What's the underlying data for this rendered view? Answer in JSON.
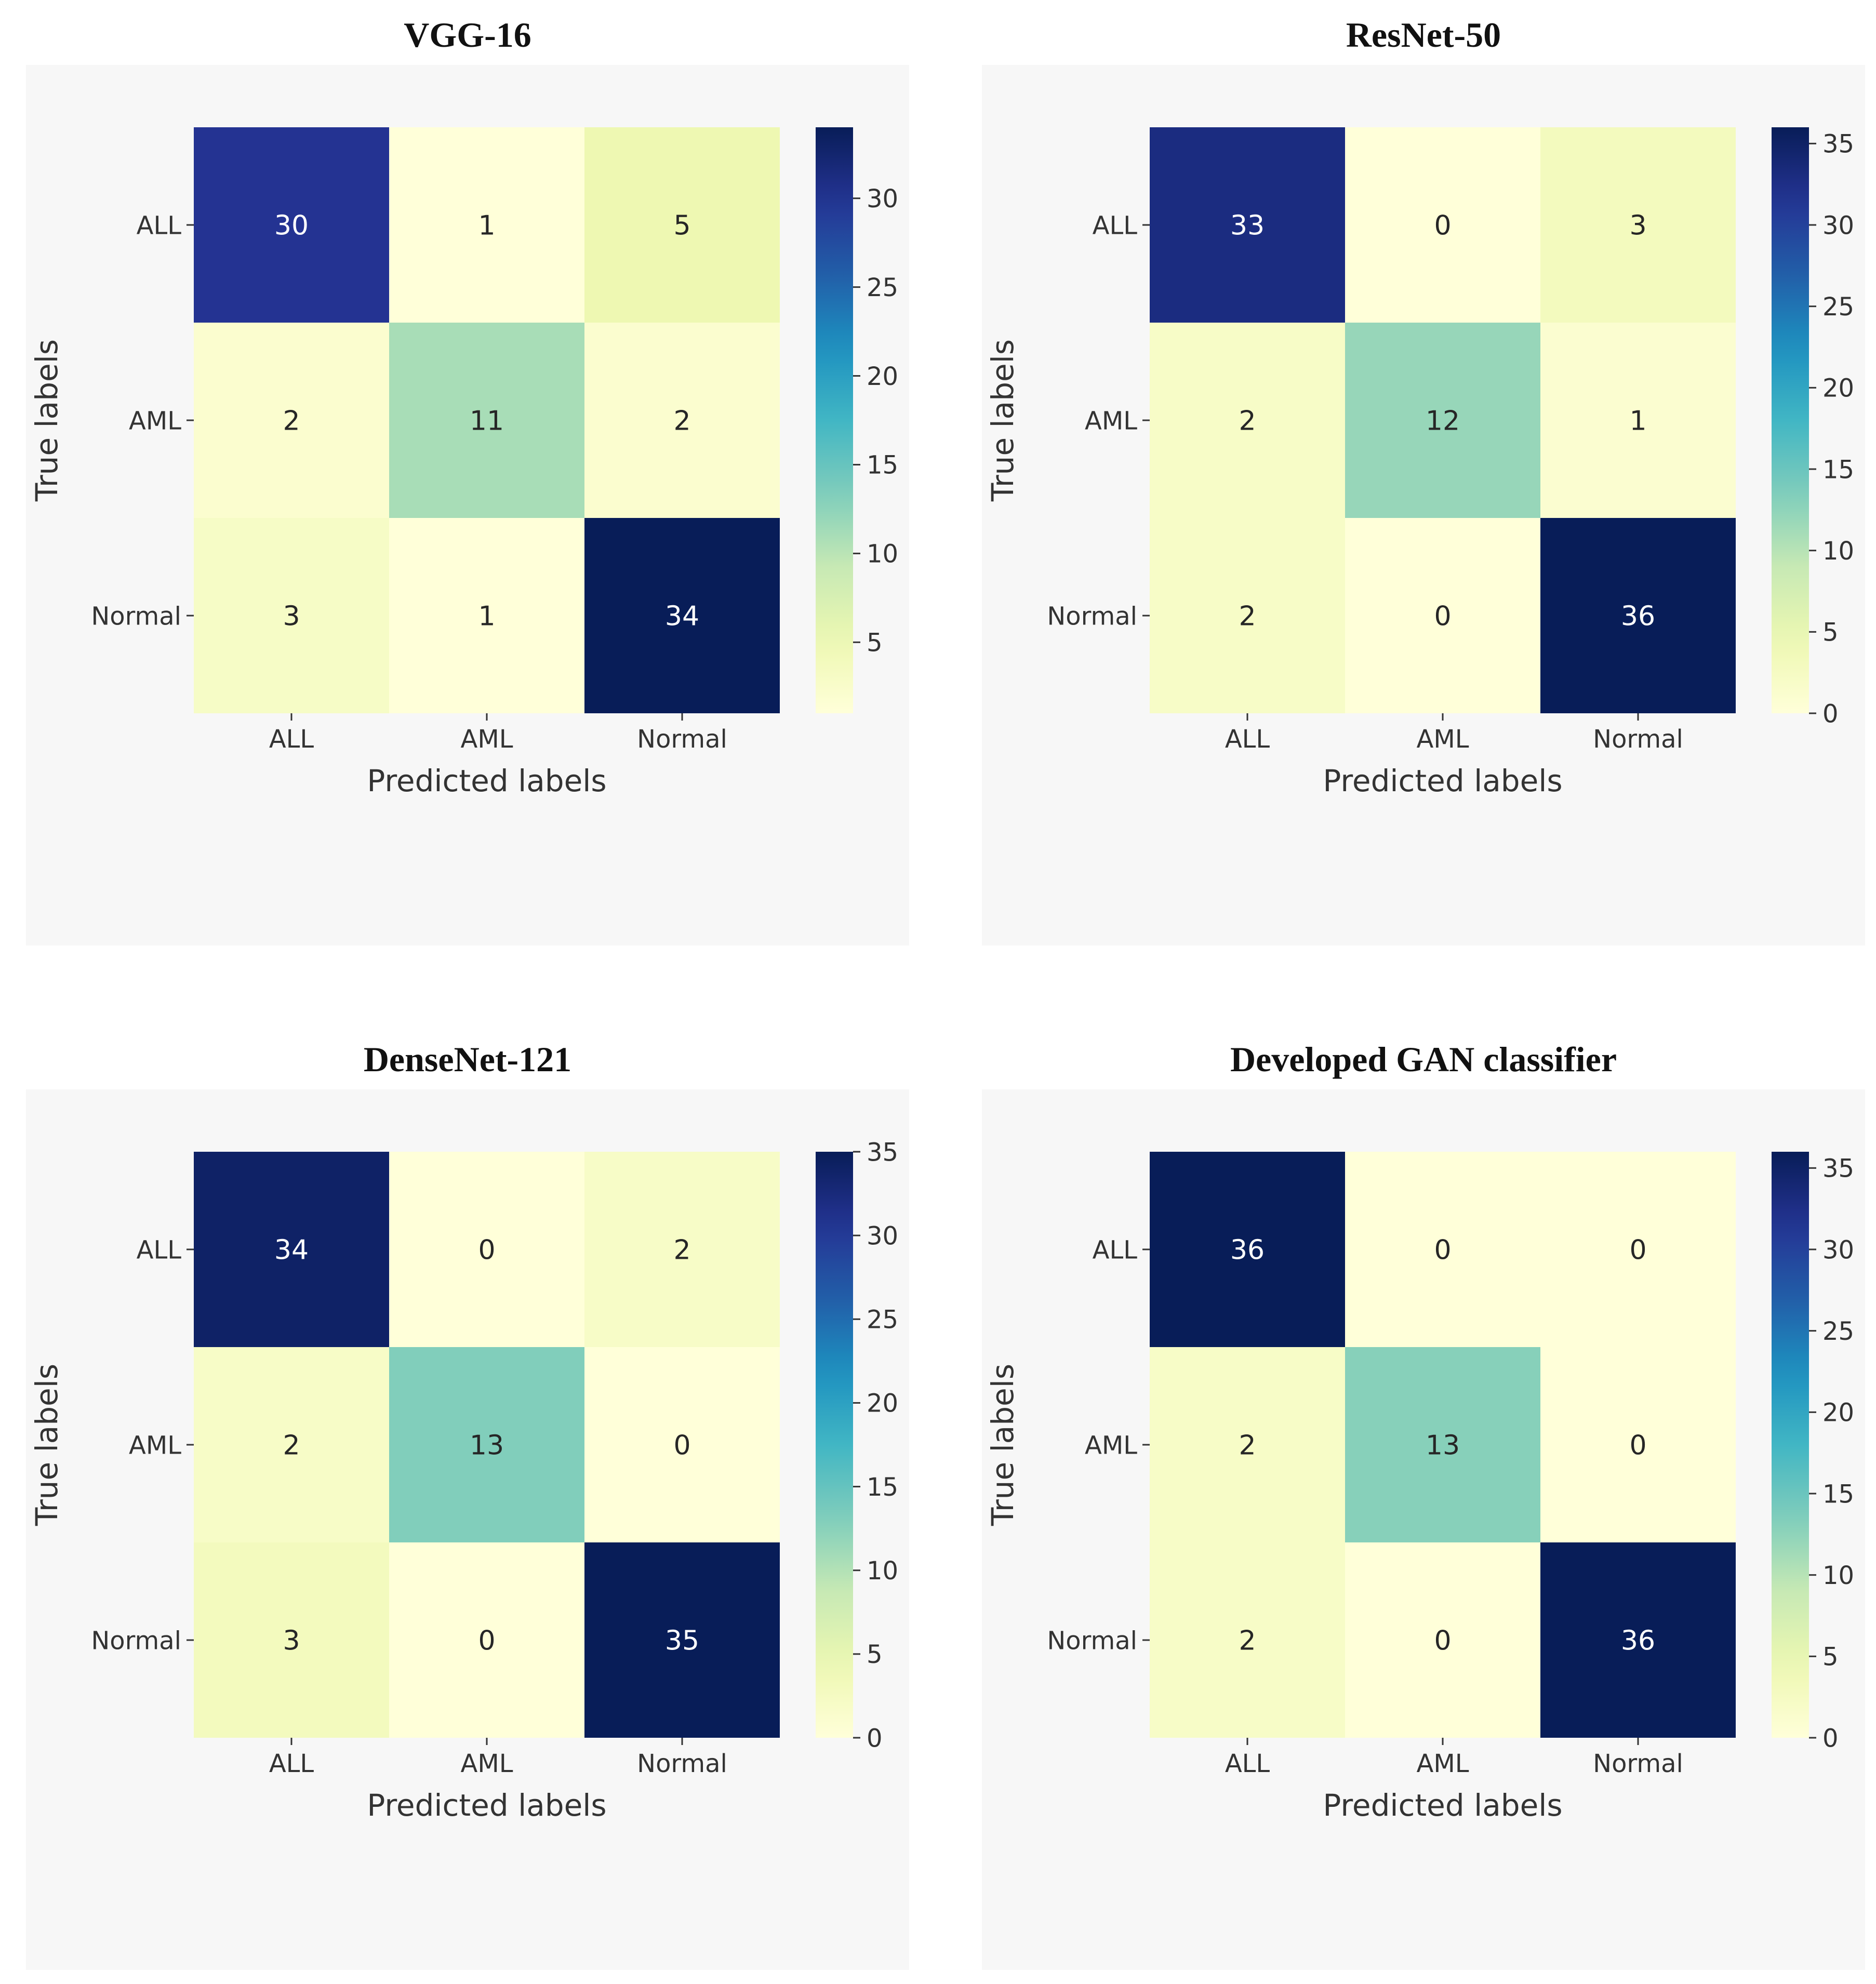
{
  "chart_data": [
    {
      "type": "heatmap",
      "title": "VGG-16",
      "xlabel": "Predicted labels",
      "ylabel": "True labels",
      "x_categories": [
        "ALL",
        "AML",
        "Normal"
      ],
      "y_categories": [
        "ALL",
        "AML",
        "Normal"
      ],
      "values": [
        [
          30,
          1,
          5
        ],
        [
          2,
          11,
          2
        ],
        [
          3,
          1,
          34
        ]
      ],
      "colorbar_range": [
        1,
        34
      ],
      "colorbar_ticks": [
        5,
        10,
        15,
        20,
        25,
        30
      ],
      "colormap": "YlGnBu"
    },
    {
      "type": "heatmap",
      "title": "ResNet-50",
      "xlabel": "Predicted labels",
      "ylabel": "True labels",
      "x_categories": [
        "ALL",
        "AML",
        "Normal"
      ],
      "y_categories": [
        "ALL",
        "AML",
        "Normal"
      ],
      "values": [
        [
          33,
          0,
          3
        ],
        [
          2,
          12,
          1
        ],
        [
          2,
          0,
          36
        ]
      ],
      "colorbar_range": [
        0,
        36
      ],
      "colorbar_ticks": [
        0,
        5,
        10,
        15,
        20,
        25,
        30,
        35
      ],
      "colormap": "YlGnBu"
    },
    {
      "type": "heatmap",
      "title": "DenseNet-121",
      "xlabel": "Predicted labels",
      "ylabel": "True labels",
      "x_categories": [
        "ALL",
        "AML",
        "Normal"
      ],
      "y_categories": [
        "ALL",
        "AML",
        "Normal"
      ],
      "values": [
        [
          34,
          0,
          2
        ],
        [
          2,
          13,
          0
        ],
        [
          3,
          0,
          35
        ]
      ],
      "colorbar_range": [
        0,
        35
      ],
      "colorbar_ticks": [
        0,
        5,
        10,
        15,
        20,
        25,
        30,
        35
      ],
      "colormap": "YlGnBu"
    },
    {
      "type": "heatmap",
      "title": "Developed GAN classifier",
      "xlabel": "Predicted labels",
      "ylabel": "True labels",
      "x_categories": [
        "ALL",
        "AML",
        "Normal"
      ],
      "y_categories": [
        "ALL",
        "AML",
        "Normal"
      ],
      "values": [
        [
          36,
          0,
          0
        ],
        [
          2,
          13,
          0
        ],
        [
          2,
          0,
          36
        ]
      ],
      "colorbar_range": [
        0,
        36
      ],
      "colorbar_ticks": [
        0,
        5,
        10,
        15,
        20,
        25,
        30,
        35
      ],
      "colormap": "YlGnBu"
    }
  ]
}
